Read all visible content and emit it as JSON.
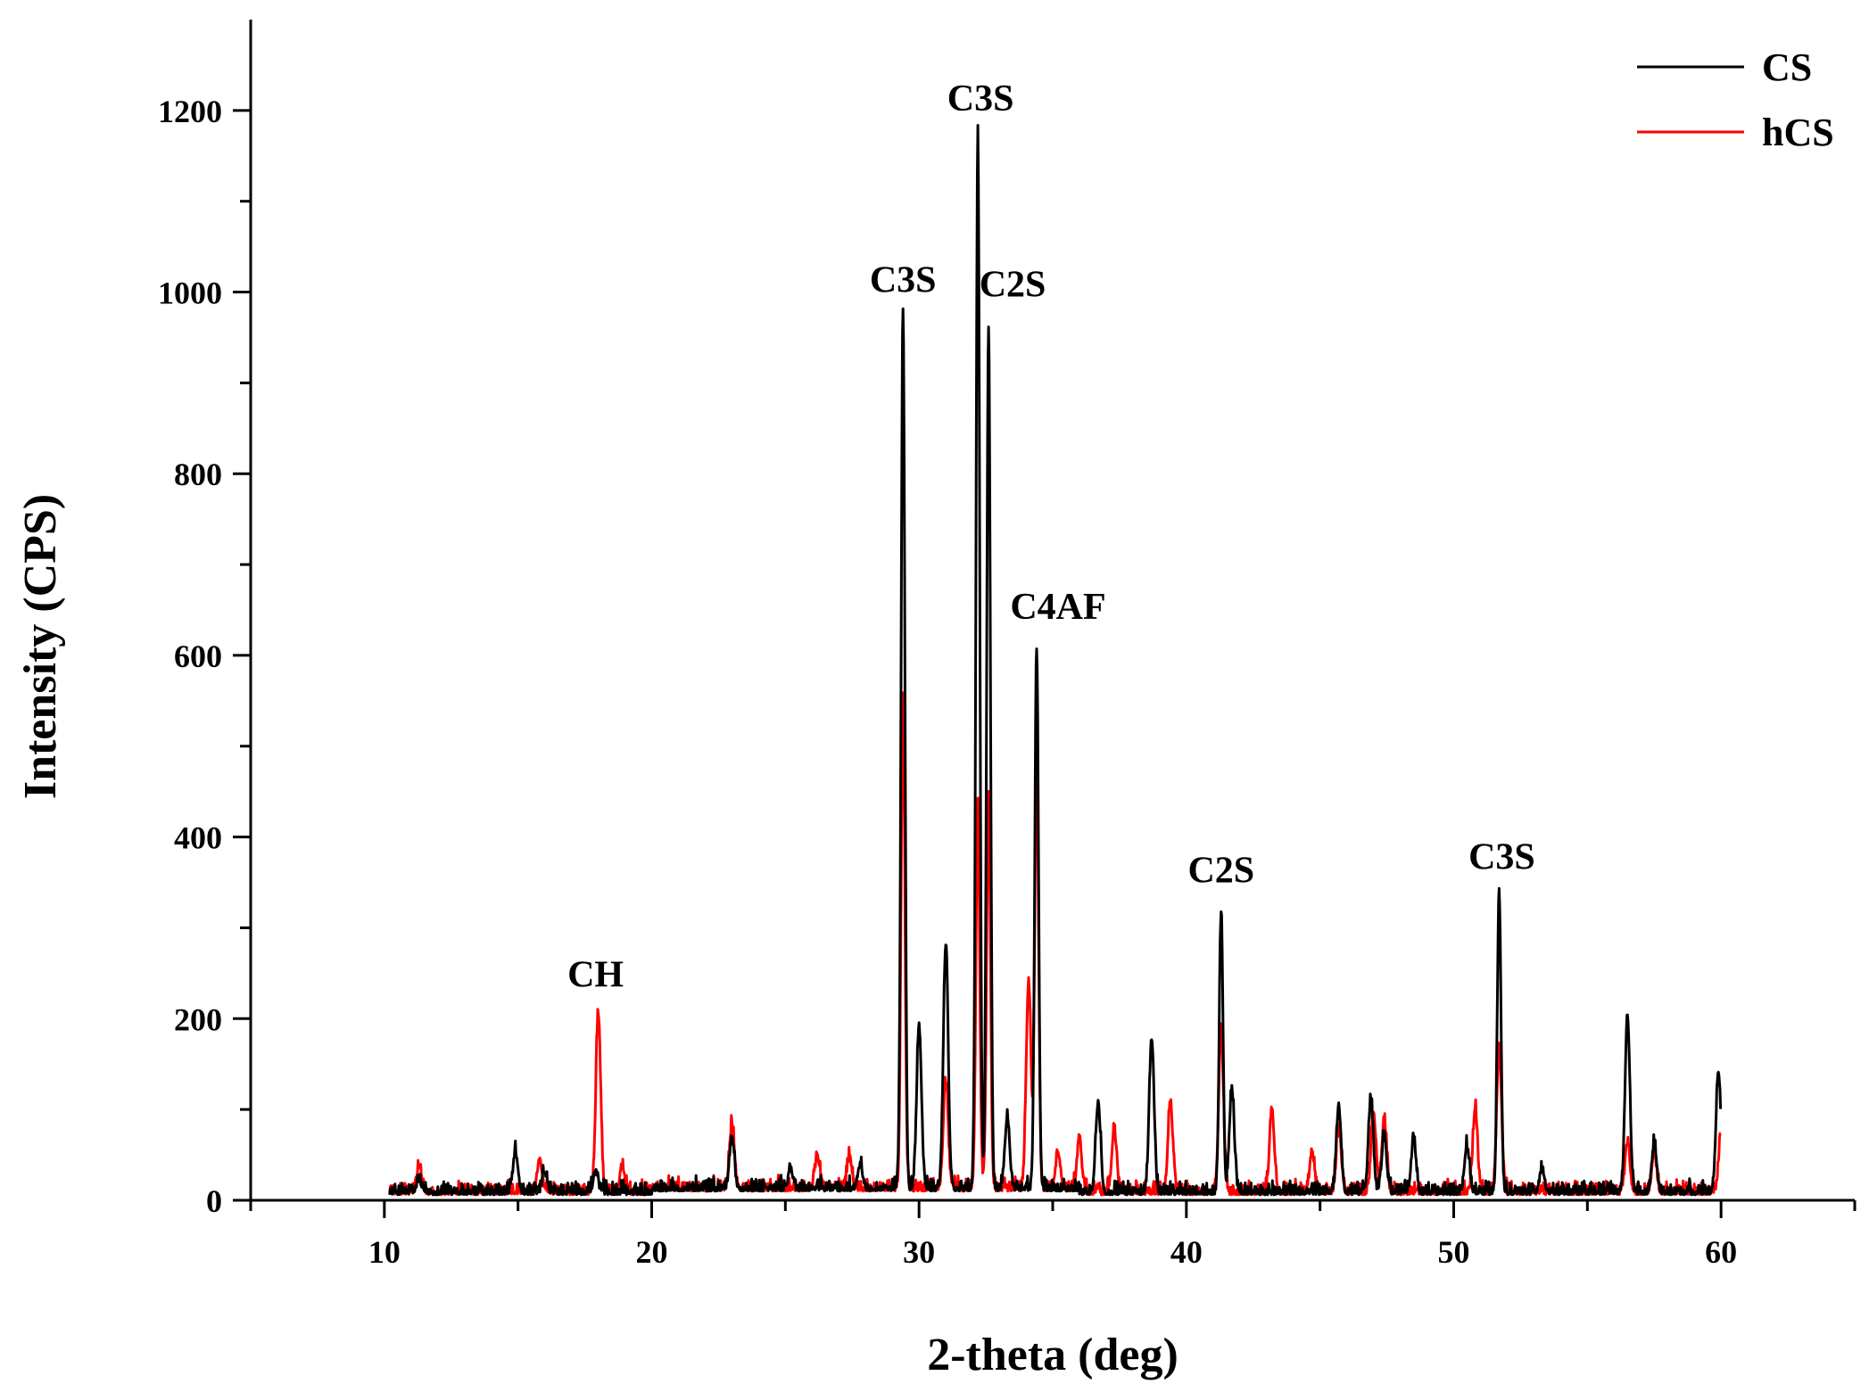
{
  "chart_data": {
    "type": "line",
    "title": "",
    "xlabel": "2-theta (deg)",
    "ylabel": "Intensity (CPS)",
    "xlim": [
      5,
      65
    ],
    "ylim": [
      0,
      1300
    ],
    "x_ticks": [
      10,
      20,
      30,
      40,
      50,
      60
    ],
    "y_ticks": [
      0,
      200,
      400,
      600,
      800,
      1000,
      1200
    ],
    "grid": false,
    "legend_position": "top-right",
    "series": [
      {
        "name": "CS",
        "color": "#000000",
        "peaks": [
          [
            11.3,
            14
          ],
          [
            14.9,
            45
          ],
          [
            16.0,
            22
          ],
          [
            17.9,
            22
          ],
          [
            23.0,
            55
          ],
          [
            25.2,
            20
          ],
          [
            27.8,
            28
          ],
          [
            29.4,
            970
          ],
          [
            30.0,
            180
          ],
          [
            31.0,
            270
          ],
          [
            32.2,
            1160
          ],
          [
            32.6,
            950
          ],
          [
            33.3,
            80
          ],
          [
            34.4,
            595
          ],
          [
            36.7,
            100
          ],
          [
            38.7,
            170
          ],
          [
            41.3,
            310
          ],
          [
            41.7,
            115
          ],
          [
            45.7,
            95
          ],
          [
            46.9,
            105
          ],
          [
            47.4,
            65
          ],
          [
            48.5,
            60
          ],
          [
            50.5,
            50
          ],
          [
            51.7,
            330
          ],
          [
            53.3,
            25
          ],
          [
            56.5,
            195
          ],
          [
            57.5,
            55
          ],
          [
            59.9,
            135
          ]
        ]
      },
      {
        "name": "hCS",
        "color": "#ff0000",
        "peaks": [
          [
            11.3,
            30
          ],
          [
            15.8,
            35
          ],
          [
            18.0,
            198
          ],
          [
            18.9,
            28
          ],
          [
            23.0,
            70
          ],
          [
            26.2,
            35
          ],
          [
            27.4,
            35
          ],
          [
            29.4,
            545
          ],
          [
            31.0,
            120
          ],
          [
            32.2,
            420
          ],
          [
            32.6,
            435
          ],
          [
            34.1,
            230
          ],
          [
            34.4,
            480
          ],
          [
            35.2,
            40
          ],
          [
            36.0,
            55
          ],
          [
            37.3,
            70
          ],
          [
            39.4,
            100
          ],
          [
            41.3,
            175
          ],
          [
            43.2,
            90
          ],
          [
            44.7,
            45
          ],
          [
            45.7,
            70
          ],
          [
            47.0,
            90
          ],
          [
            47.4,
            80
          ],
          [
            50.8,
            90
          ],
          [
            51.7,
            160
          ],
          [
            56.5,
            55
          ],
          [
            57.5,
            45
          ],
          [
            60.0,
            65
          ]
        ]
      }
    ],
    "annotations": [
      {
        "text": "CH",
        "x": 17.9,
        "y": 235
      },
      {
        "text": "C3S",
        "x": 29.4,
        "y": 1000
      },
      {
        "text": "C3S",
        "x": 32.3,
        "y": 1200
      },
      {
        "text": "C2S",
        "x": 33.5,
        "y": 995
      },
      {
        "text": "C4AF",
        "x": 35.2,
        "y": 640
      },
      {
        "text": "C2S",
        "x": 41.3,
        "y": 350
      },
      {
        "text": "C3S",
        "x": 51.8,
        "y": 365
      }
    ]
  }
}
